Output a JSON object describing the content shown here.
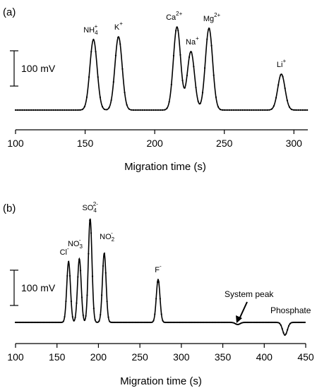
{
  "chart_data": [
    {
      "type": "line",
      "panel_label": "(a)",
      "xlabel": "Migration time (s)",
      "ylabel": "",
      "xlim": [
        100,
        310
      ],
      "xticks": [
        "100",
        "150",
        "200",
        "250",
        "300"
      ],
      "grid": false,
      "scale_bar": "100 mV",
      "peaks": [
        {
          "label": "NH",
          "sub": "4",
          "sup": "+",
          "x": 156,
          "height": 100
        },
        {
          "label": "K",
          "sub": "",
          "sup": "+",
          "x": 174,
          "height": 104
        },
        {
          "label": "Ca",
          "sub": "",
          "sup": "2+",
          "x": 216,
          "height": 118
        },
        {
          "label": "Na",
          "sub": "",
          "sup": "+",
          "x": 226,
          "height": 83
        },
        {
          "label": "Mg",
          "sub": "",
          "sup": "2+",
          "x": 239,
          "height": 116
        },
        {
          "label": "Li",
          "sub": "",
          "sup": "+",
          "x": 291,
          "height": 51
        }
      ]
    },
    {
      "type": "line",
      "panel_label": "(b)",
      "xlabel": "Migration time (s)",
      "ylabel": "",
      "xlim": [
        100,
        450
      ],
      "xticks": [
        "100",
        "150",
        "200",
        "250",
        "300",
        "350",
        "400",
        "450"
      ],
      "grid": false,
      "scale_bar": "100 mV",
      "peaks": [
        {
          "label": "Cl",
          "sub": "",
          "sup": "-",
          "x": 164,
          "height": 86
        },
        {
          "label": "NO",
          "sub": "3",
          "sup": "-",
          "x": 177,
          "height": 90
        },
        {
          "label": "SO",
          "sub": "4",
          "sup": "2-",
          "x": 190,
          "height": 147
        },
        {
          "label": "NO",
          "sub": "2",
          "sup": "-",
          "x": 207,
          "height": 98
        },
        {
          "label": "F",
          "sub": "",
          "sup": "-",
          "x": 272,
          "height": 61
        },
        {
          "label": "",
          "sub": "",
          "sup": "",
          "x": 368,
          "height": -3
        },
        {
          "label": "",
          "sub": "",
          "sup": "",
          "x": 425,
          "height": -18
        }
      ],
      "annotations": [
        "System peak",
        "Phosphate"
      ]
    }
  ]
}
